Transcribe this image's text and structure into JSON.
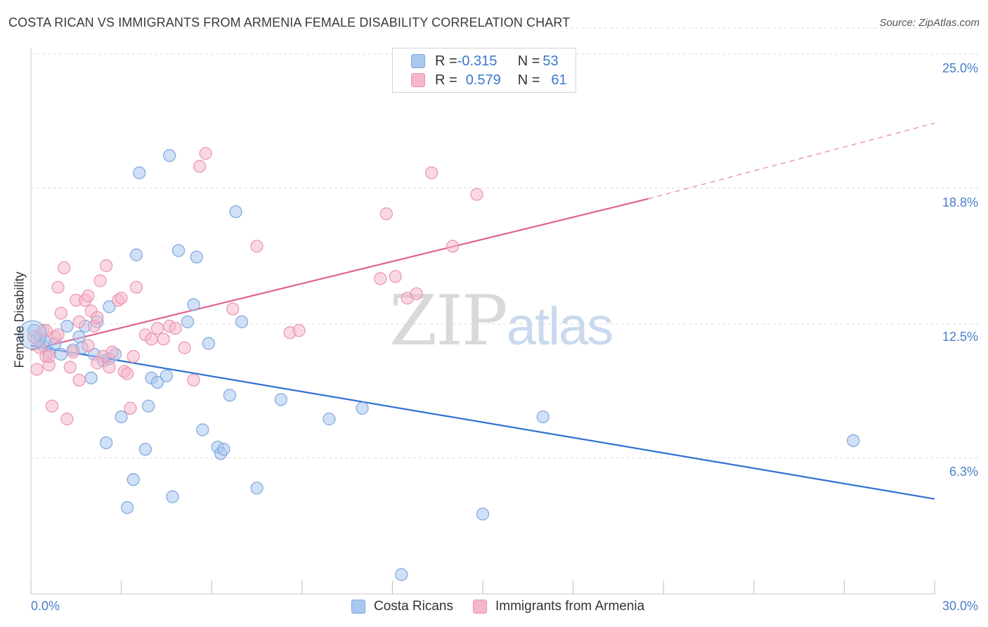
{
  "title": "COSTA RICAN VS IMMIGRANTS FROM ARMENIA FEMALE DISABILITY CORRELATION CHART",
  "source": "Source: ZipAtlas.com",
  "watermark": {
    "zip": "ZIP",
    "atlas": "atlas"
  },
  "legend_top": {
    "rows": [
      {
        "r_label": "R = ",
        "r_value": "-0.315",
        "n_label": "N = ",
        "n_value": "53",
        "color": "#a9c7ef"
      },
      {
        "r_label": "R = ",
        "r_value": "0.579",
        "n_label": "N = ",
        "n_value": "61",
        "color": "#f5b8cb"
      }
    ]
  },
  "legend_bottom": [
    {
      "label": "Costa Ricans",
      "color": "#a9c7ef"
    },
    {
      "label": "Immigrants from Armenia",
      "color": "#f5b8cb"
    }
  ],
  "colors": {
    "blue_fill": "#a9c7ef",
    "blue_line": "#2f72d0",
    "pink_fill": "#f5b8cb",
    "pink_line": "#e0628f",
    "accent_text": "#4a7fc8"
  },
  "chart_data": {
    "type": "scatter",
    "title": "COSTA RICAN VS IMMIGRANTS FROM ARMENIA FEMALE DISABILITY CORRELATION CHART",
    "xlabel": "",
    "ylabel": "Female Disability",
    "xlim": [
      0,
      30
    ],
    "ylim": [
      0,
      26.2
    ],
    "x_tick_labels": [
      "0.0%",
      "30.0%"
    ],
    "y_ticks": [
      6.3,
      12.5,
      18.8,
      25.0
    ],
    "y_tick_labels": [
      "6.3%",
      "12.5%",
      "18.8%",
      "25.0%"
    ],
    "grid": "horizontal dashed",
    "series": [
      {
        "name": "Costa Ricans",
        "color": "#a9c7ef",
        "trend": {
          "x": [
            0,
            30
          ],
          "y": [
            11.5,
            4.4
          ],
          "style": "solid"
        },
        "points": [
          [
            0.1,
            12.2
          ],
          [
            0.2,
            11.8
          ],
          [
            0.3,
            11.9
          ],
          [
            0.4,
            11.5
          ],
          [
            0.5,
            11.7
          ],
          [
            0.6,
            11.2
          ],
          [
            0.8,
            11.6
          ],
          [
            1.0,
            11.1
          ],
          [
            1.2,
            12.4
          ],
          [
            1.4,
            11.3
          ],
          [
            1.6,
            11.9
          ],
          [
            1.7,
            11.4
          ],
          [
            1.8,
            12.4
          ],
          [
            2.0,
            10.0
          ],
          [
            2.1,
            11.1
          ],
          [
            2.2,
            12.6
          ],
          [
            2.4,
            10.8
          ],
          [
            2.6,
            10.9
          ],
          [
            2.6,
            13.3
          ],
          [
            2.8,
            11.1
          ],
          [
            2.5,
            7.0
          ],
          [
            3.0,
            8.2
          ],
          [
            3.2,
            4.0
          ],
          [
            3.4,
            5.3
          ],
          [
            3.5,
            15.7
          ],
          [
            3.6,
            19.5
          ],
          [
            3.8,
            6.7
          ],
          [
            3.9,
            8.7
          ],
          [
            4.0,
            10.0
          ],
          [
            4.2,
            9.8
          ],
          [
            4.5,
            10.1
          ],
          [
            4.6,
            20.3
          ],
          [
            4.7,
            4.5
          ],
          [
            4.9,
            15.9
          ],
          [
            5.2,
            12.6
          ],
          [
            5.4,
            13.4
          ],
          [
            5.5,
            15.6
          ],
          [
            5.7,
            7.6
          ],
          [
            5.9,
            11.6
          ],
          [
            6.2,
            6.8
          ],
          [
            6.3,
            6.5
          ],
          [
            6.4,
            6.7
          ],
          [
            6.6,
            9.2
          ],
          [
            6.8,
            17.7
          ],
          [
            7.0,
            12.6
          ],
          [
            7.5,
            4.9
          ],
          [
            8.3,
            9.0
          ],
          [
            9.9,
            8.1
          ],
          [
            11.0,
            8.6
          ],
          [
            15.0,
            3.7
          ],
          [
            17.0,
            8.2
          ],
          [
            27.3,
            7.1
          ],
          [
            12.3,
            0.9
          ]
        ]
      },
      {
        "name": "Immigrants from Armenia",
        "color": "#f5b8cb",
        "trend": {
          "x": [
            0,
            20.5
          ],
          "y": [
            11.3,
            18.3
          ],
          "style": "solid",
          "extension": {
            "x": [
              20.5,
              30
            ],
            "y": [
              18.3,
              21.8
            ],
            "style": "dashed"
          }
        },
        "points": [
          [
            0.1,
            11.9
          ],
          [
            0.2,
            10.4
          ],
          [
            0.3,
            11.4
          ],
          [
            0.4,
            12.2
          ],
          [
            0.5,
            11.0
          ],
          [
            0.6,
            10.6
          ],
          [
            0.7,
            8.7
          ],
          [
            0.8,
            11.9
          ],
          [
            0.9,
            12.0
          ],
          [
            0.9,
            14.2
          ],
          [
            1.0,
            13.0
          ],
          [
            1.1,
            15.1
          ],
          [
            1.2,
            8.1
          ],
          [
            1.3,
            10.5
          ],
          [
            1.4,
            11.2
          ],
          [
            1.5,
            13.6
          ],
          [
            1.6,
            12.6
          ],
          [
            1.6,
            9.9
          ],
          [
            1.8,
            13.6
          ],
          [
            1.9,
            13.8
          ],
          [
            2.0,
            13.1
          ],
          [
            2.1,
            12.4
          ],
          [
            2.2,
            12.8
          ],
          [
            2.3,
            14.5
          ],
          [
            2.4,
            11.0
          ],
          [
            2.5,
            15.2
          ],
          [
            2.6,
            10.5
          ],
          [
            2.7,
            11.2
          ],
          [
            2.9,
            13.6
          ],
          [
            3.0,
            13.7
          ],
          [
            3.1,
            10.3
          ],
          [
            3.2,
            10.2
          ],
          [
            3.3,
            8.6
          ],
          [
            3.5,
            14.2
          ],
          [
            3.8,
            12.0
          ],
          [
            4.0,
            11.8
          ],
          [
            4.2,
            12.3
          ],
          [
            4.4,
            11.8
          ],
          [
            4.6,
            12.4
          ],
          [
            4.8,
            12.3
          ],
          [
            5.1,
            11.4
          ],
          [
            5.4,
            9.9
          ],
          [
            5.6,
            19.8
          ],
          [
            5.8,
            20.4
          ],
          [
            6.7,
            13.2
          ],
          [
            7.5,
            16.1
          ],
          [
            8.6,
            12.1
          ],
          [
            8.9,
            12.2
          ],
          [
            11.6,
            14.6
          ],
          [
            11.8,
            17.6
          ],
          [
            12.1,
            14.7
          ],
          [
            12.5,
            13.7
          ],
          [
            12.8,
            13.9
          ],
          [
            13.3,
            19.5
          ],
          [
            14.0,
            16.1
          ],
          [
            14.8,
            18.5
          ],
          [
            2.2,
            10.7
          ],
          [
            3.4,
            11.0
          ],
          [
            1.9,
            11.5
          ],
          [
            0.5,
            12.2
          ],
          [
            0.6,
            11.0
          ]
        ]
      }
    ]
  }
}
